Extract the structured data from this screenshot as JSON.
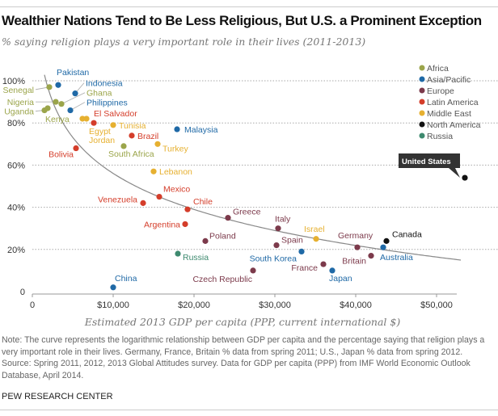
{
  "title": "Wealthier Nations Tend to Be Less Religious, But U.S. a Prominent Exception",
  "subtitle": "% saying religion plays a very important role in their lives (2011-2013)",
  "note": "Note: The curve represents the logarithmic relationship between GDP per capita and the percentage saying that religion plays a very important role in their lives. Germany, France, Britain % data from spring 2011; U.S., Japan % data from spring 2012.",
  "source": "Source: Spring 2011, 2012, 2013 Global Attitudes survey. Data for GDP per capita (PPP) from IMF World Economic Outlook Database, April 2014.",
  "brand": "PEW RESEARCH CENTER",
  "chart_data": {
    "type": "scatter",
    "xlabel": "Estimated 2013 GDP per capita (PPP, current international $)",
    "ylabel": "",
    "xlim": [
      0,
      56000
    ],
    "ylim": [
      0,
      100
    ],
    "x_ticks": [
      {
        "v": 0,
        "label": "0"
      },
      {
        "v": 10000,
        "label": "$10,000"
      },
      {
        "v": 20000,
        "label": "$20,000"
      },
      {
        "v": 30000,
        "label": "$30,000"
      },
      {
        "v": 40000,
        "label": "$40,000"
      },
      {
        "v": 50000,
        "label": "$50,000"
      }
    ],
    "y_ticks": [
      {
        "v": 0,
        "label": "0"
      },
      {
        "v": 20,
        "label": "20%"
      },
      {
        "v": 40,
        "label": "40%"
      },
      {
        "v": 60,
        "label": "60%"
      },
      {
        "v": 80,
        "label": "80%"
      },
      {
        "v": 100,
        "label": "100%"
      }
    ],
    "grid": "horizontal dotted",
    "legend_position": "top-right",
    "legend": [
      {
        "name": "Africa",
        "color": "#9ba54b"
      },
      {
        "name": "Asia/Pacific",
        "color": "#1f69a6"
      },
      {
        "name": "Europe",
        "color": "#7c3a4b"
      },
      {
        "name": "Latin America",
        "color": "#d43d2a"
      },
      {
        "name": "Middle East",
        "color": "#e6b030"
      },
      {
        "name": "North America",
        "color": "#111111"
      },
      {
        "name": "Russia",
        "color": "#3e8a6f"
      }
    ],
    "trendline": {
      "type": "logarithmic",
      "formula": "y = 283.1 - 24.65 ln(x)",
      "x_range": [
        1500,
        53000
      ]
    },
    "points": [
      {
        "country": "Pakistan",
        "region": "Asia/Pacific",
        "x": 3200,
        "y": 98
      },
      {
        "country": "Senegal",
        "region": "Africa",
        "x": 2100,
        "y": 97
      },
      {
        "country": "Indonesia",
        "region": "Asia/Pacific",
        "x": 5300,
        "y": 94
      },
      {
        "country": "Ghana",
        "region": "Africa",
        "x": 3600,
        "y": 89
      },
      {
        "country": "Nigeria",
        "region": "Africa",
        "x": 2900,
        "y": 90
      },
      {
        "country": "Philippines",
        "region": "Asia/Pacific",
        "x": 4700,
        "y": 86
      },
      {
        "country": "Uganda",
        "region": "Africa",
        "x": 1500,
        "y": 86
      },
      {
        "country": "Kenya",
        "region": "Africa",
        "x": 1900,
        "y": 87
      },
      {
        "country": "Egypt",
        "region": "Middle East",
        "x": 6200,
        "y": 82
      },
      {
        "country": "Jordan",
        "region": "Middle East",
        "x": 6700,
        "y": 82
      },
      {
        "country": "El Salvador",
        "region": "Latin America",
        "x": 7600,
        "y": 80
      },
      {
        "country": "Tunisia",
        "region": "Middle East",
        "x": 10000,
        "y": 79
      },
      {
        "country": "Brazil",
        "region": "Latin America",
        "x": 12300,
        "y": 74
      },
      {
        "country": "Malaysia",
        "region": "Asia/Pacific",
        "x": 17900,
        "y": 77
      },
      {
        "country": "South Africa",
        "region": "Africa",
        "x": 11300,
        "y": 69
      },
      {
        "country": "Turkey",
        "region": "Middle East",
        "x": 15500,
        "y": 70
      },
      {
        "country": "Bolivia",
        "region": "Latin America",
        "x": 5400,
        "y": 68
      },
      {
        "country": "Lebanon",
        "region": "Middle East",
        "x": 15000,
        "y": 57
      },
      {
        "country": "Mexico",
        "region": "Latin America",
        "x": 15700,
        "y": 45
      },
      {
        "country": "Venezuela",
        "region": "Latin America",
        "x": 13700,
        "y": 42
      },
      {
        "country": "Chile",
        "region": "Latin America",
        "x": 19200,
        "y": 39
      },
      {
        "country": "Argentina",
        "region": "Latin America",
        "x": 18900,
        "y": 32
      },
      {
        "country": "Greece",
        "region": "Europe",
        "x": 24200,
        "y": 35
      },
      {
        "country": "Italy",
        "region": "Europe",
        "x": 30400,
        "y": 30
      },
      {
        "country": "Israel",
        "region": "Middle East",
        "x": 35100,
        "y": 25
      },
      {
        "country": "Poland",
        "region": "Europe",
        "x": 21400,
        "y": 24
      },
      {
        "country": "Spain",
        "region": "Europe",
        "x": 30200,
        "y": 22
      },
      {
        "country": "Germany",
        "region": "Europe",
        "x": 40200,
        "y": 21
      },
      {
        "country": "Canada",
        "region": "North America",
        "x": 43800,
        "y": 24
      },
      {
        "country": "Australia",
        "region": "Asia/Pacific",
        "x": 43400,
        "y": 21
      },
      {
        "country": "South Korea",
        "region": "Asia/Pacific",
        "x": 33300,
        "y": 19
      },
      {
        "country": "Russia",
        "region": "Russia",
        "x": 18000,
        "y": 18
      },
      {
        "country": "Britain",
        "region": "Europe",
        "x": 41900,
        "y": 17
      },
      {
        "country": "France",
        "region": "Europe",
        "x": 36000,
        "y": 13
      },
      {
        "country": "Japan",
        "region": "Asia/Pacific",
        "x": 37100,
        "y": 10
      },
      {
        "country": "Czech Republic",
        "region": "Europe",
        "x": 27300,
        "y": 10
      },
      {
        "country": "China",
        "region": "Asia/Pacific",
        "x": 10000,
        "y": 2
      },
      {
        "country": "United States",
        "region": "North America",
        "x": 53500,
        "y": 54
      }
    ]
  }
}
